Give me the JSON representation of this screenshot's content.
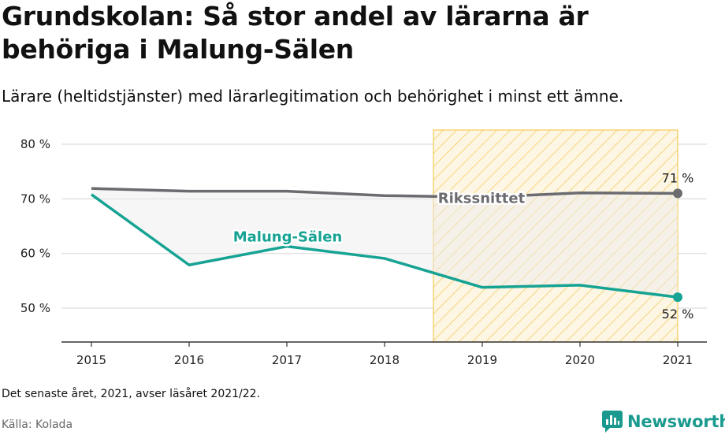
{
  "header": {
    "title": "Grundskolan: Så stor andel av lärarna är behöriga i Malung-Sälen",
    "subtitle": "Lärare (heltidstjänster) med lärarlegitimation och behörighet i minst ett ämne."
  },
  "footer": {
    "note": "Det senaste året, 2021, avser läsåret 2021/22.",
    "source": "Källa: Kolada",
    "brand": "Newsworthy"
  },
  "colors": {
    "local": "#16a393",
    "national": "#6b6b70",
    "highlight": "#f5c542",
    "gap_fill": "#ececec",
    "grid": "#dddddd"
  },
  "chart_data": {
    "type": "line",
    "x": [
      2015,
      2016,
      2017,
      2018,
      2019,
      2020,
      2021
    ],
    "series": [
      {
        "name": "Rikssnittet",
        "values": [
          71.9,
          71.4,
          71.4,
          70.6,
          70.3,
          71.1,
          71.0
        ],
        "end_label": "71 %"
      },
      {
        "name": "Malung-Sälen",
        "values": [
          70.8,
          57.9,
          61.3,
          59.1,
          53.8,
          54.2,
          52.0
        ],
        "end_label": "52 %"
      }
    ],
    "y_ticks": [
      50,
      60,
      70,
      80
    ],
    "y_tick_labels": [
      "50 %",
      "60 %",
      "70 %",
      "80 %"
    ],
    "ylim": [
      43.8,
      82.6
    ],
    "highlight_range": [
      2018.5,
      2021
    ],
    "grid": true
  },
  "icons": {
    "brand": "newsworthy-logo-icon"
  }
}
